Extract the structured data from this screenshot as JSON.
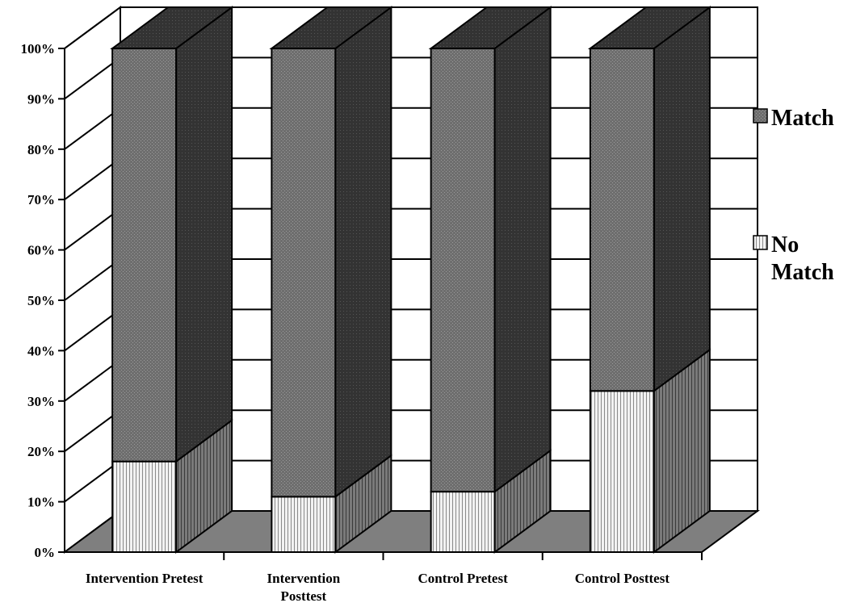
{
  "chart_data": {
    "type": "bar",
    "stacked": true,
    "three_d": true,
    "categories": [
      "Intervention Pretest",
      "Intervention Posttest",
      "Control Pretest",
      "Control Posttest"
    ],
    "category_lines": [
      [
        "Intervention Pretest"
      ],
      [
        "Intervention",
        "Posttest"
      ],
      [
        "Control Pretest"
      ],
      [
        "Control Posttest"
      ]
    ],
    "series": [
      {
        "name": "No Match",
        "legend_lines": [
          "No",
          "Match"
        ],
        "values": [
          18,
          11,
          12,
          32
        ],
        "color": "#c8c8c8"
      },
      {
        "name": "Match",
        "legend_lines": [
          "Match"
        ],
        "values": [
          82,
          89,
          88,
          68
        ],
        "color": "#555555"
      }
    ],
    "y_ticks": [
      "0%",
      "10%",
      "20%",
      "30%",
      "40%",
      "50%",
      "60%",
      "70%",
      "80%",
      "90%",
      "100%"
    ],
    "ylim": [
      0,
      100
    ],
    "grid": true,
    "legend_position": "right",
    "title": "",
    "xlabel": "",
    "ylabel": ""
  }
}
